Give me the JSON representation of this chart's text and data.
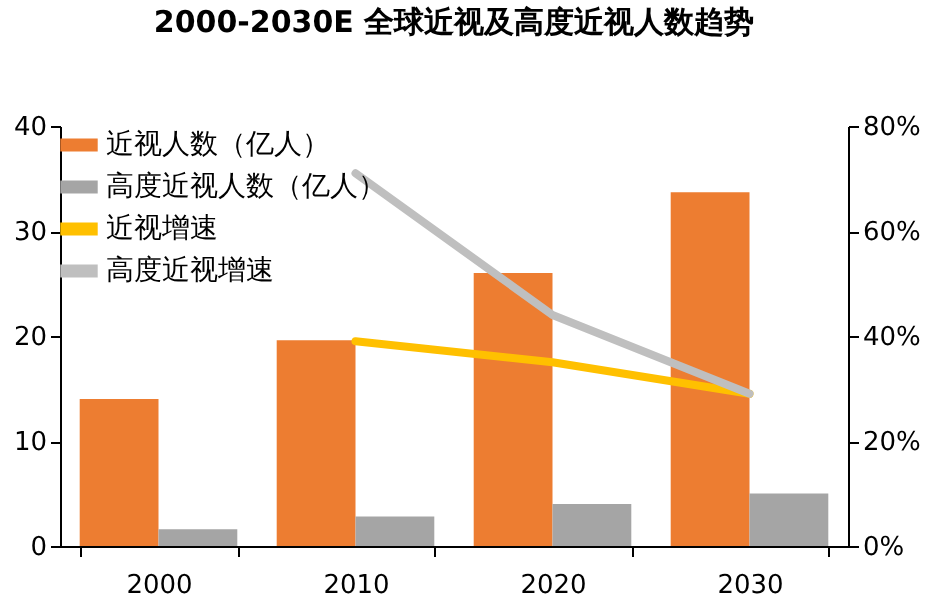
{
  "chart_data": {
    "type": "bar",
    "title": "2000-2030E 全球近视及高度近视人数趋势",
    "categories": [
      "2000",
      "2010",
      "2020",
      "2030"
    ],
    "series": [
      {
        "name": "近视人数（亿人）",
        "color": "#ed7d31",
        "values": [
          14,
          19.6,
          26,
          33.7
        ]
      },
      {
        "name": "高度近视人数（亿人）",
        "color": "#a5a5a5",
        "values": [
          1.6,
          2.8,
          4,
          5
        ]
      },
      {
        "name": "近视增速",
        "type": "line",
        "axis": "y2",
        "color": "#ffc000",
        "values": [
          null,
          39,
          35,
          29
        ]
      },
      {
        "name": "高度近视增速",
        "type": "line",
        "axis": "y2",
        "color": "#bfbfbf",
        "values": [
          null,
          71,
          44,
          29
        ]
      }
    ],
    "ylim": [
      0,
      40
    ],
    "yticks": [
      0,
      10,
      20,
      30,
      40
    ],
    "y2lim": [
      0,
      80
    ],
    "y2ticks": [
      {
        "value": 0,
        "label": "0%"
      },
      {
        "value": 20,
        "label": "20%"
      },
      {
        "value": 40,
        "label": "40%"
      },
      {
        "value": 60,
        "label": "60%"
      },
      {
        "value": 80,
        "label": "80%"
      }
    ],
    "grid": false,
    "legend": "top left"
  }
}
